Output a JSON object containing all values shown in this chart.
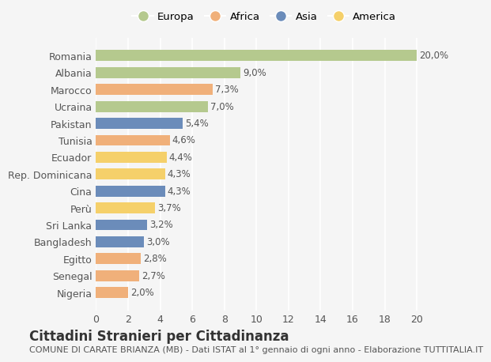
{
  "categories": [
    "Romania",
    "Albania",
    "Marocco",
    "Ucraina",
    "Pakistan",
    "Tunisia",
    "Ecuador",
    "Rep. Dominicana",
    "Cina",
    "Perù",
    "Sri Lanka",
    "Bangladesh",
    "Egitto",
    "Senegal",
    "Nigeria"
  ],
  "values": [
    20.0,
    9.0,
    7.3,
    7.0,
    5.4,
    4.6,
    4.4,
    4.3,
    4.3,
    3.7,
    3.2,
    3.0,
    2.8,
    2.7,
    2.0
  ],
  "labels": [
    "20,0%",
    "9,0%",
    "7,3%",
    "7,0%",
    "5,4%",
    "4,6%",
    "4,4%",
    "4,3%",
    "4,3%",
    "3,7%",
    "3,2%",
    "3,0%",
    "2,8%",
    "2,7%",
    "2,0%"
  ],
  "colors": [
    "#b5c98e",
    "#b5c98e",
    "#f0b07a",
    "#b5c98e",
    "#6b8cba",
    "#f0b07a",
    "#f5d06a",
    "#f5d06a",
    "#6b8cba",
    "#f5d06a",
    "#6b8cba",
    "#6b8cba",
    "#f0b07a",
    "#f0b07a",
    "#f0b07a"
  ],
  "legend_labels": [
    "Europa",
    "Africa",
    "Asia",
    "America"
  ],
  "legend_colors": [
    "#b5c98e",
    "#f0b07a",
    "#6b8cba",
    "#f5d06a"
  ],
  "xlim": [
    0,
    21
  ],
  "xticks": [
    0,
    2,
    4,
    6,
    8,
    10,
    12,
    14,
    16,
    18,
    20
  ],
  "title": "Cittadini Stranieri per Cittadinanza",
  "subtitle": "COMUNE DI CARATE BRIANZA (MB) - Dati ISTAT al 1° gennaio di ogni anno - Elaborazione TUTTITALIA.IT",
  "bg_color": "#f5f5f5",
  "grid_color": "#ffffff",
  "text_color": "#555555",
  "label_fontsize": 8.5,
  "tick_fontsize": 9,
  "title_fontsize": 12,
  "subtitle_fontsize": 8
}
